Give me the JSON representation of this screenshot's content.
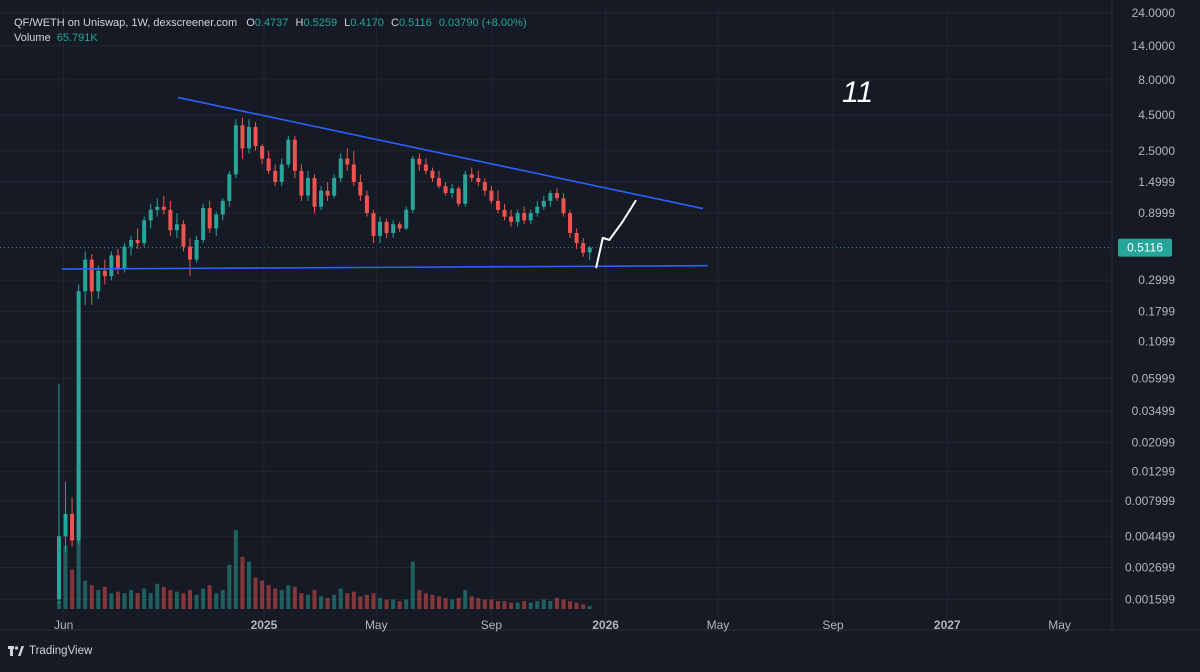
{
  "header": {
    "pair": "QF/WETH on Uniswap, 1W, dexscreener.com",
    "o_label": "O",
    "o_value": "0.4737",
    "h_label": "H",
    "h_value": "0.5259",
    "l_label": "L",
    "l_value": "0.4170",
    "c_label": "C",
    "c_value": "0.5116",
    "change": "0.03790 (+8.00%)",
    "volume_label": "Volume",
    "volume_value": "65.791K"
  },
  "brand": {
    "name": "TradingView"
  },
  "colors": {
    "up": "#26a69a",
    "down": "#ef5350",
    "trendline": "#2962ff",
    "background": "#161a25",
    "grid": "#232632"
  },
  "annotation": {
    "text": "11"
  },
  "chart_data": {
    "type": "candlestick",
    "y_scale": "log",
    "ylim": [
      0.0013,
      26
    ],
    "last_price": 0.5116,
    "y_ticks": [
      24,
      14,
      8,
      4.5,
      2.5,
      1.4999,
      0.8999,
      0.5116,
      0.2999,
      0.1799,
      0.1099,
      0.05999,
      0.03499,
      0.02099,
      0.01299,
      0.007999,
      0.004499,
      0.002699,
      0.001599
    ],
    "y_tick_labels": [
      "24.0000",
      "14.0000",
      "8.0000",
      "4.5000",
      "2.5000",
      "1.4999",
      "0.8999",
      "0.5116",
      "0.2999",
      "0.1799",
      "0.1099",
      "0.05999",
      "0.03499",
      "0.02099",
      "0.01299",
      "0.007999",
      "0.004499",
      "0.002699",
      "0.001599"
    ],
    "x_ticks": [
      {
        "label": "Jun",
        "x": "2024-06-01"
      },
      {
        "label": "2025",
        "x": "2025-01-01"
      },
      {
        "label": "May",
        "x": "2025-05-01"
      },
      {
        "label": "Sep",
        "x": "2025-09-01"
      },
      {
        "label": "2026",
        "x": "2026-01-01"
      },
      {
        "label": "May",
        "x": "2026-05-01"
      },
      {
        "label": "Sep",
        "x": "2026-09-01"
      },
      {
        "label": "2027",
        "x": "2027-01-01"
      },
      {
        "label": "May",
        "x": "2027-05-01"
      }
    ],
    "xlim": [
      "2024-03-25",
      "2027-06-26"
    ],
    "candles": [
      {
        "x": "2024-05-27",
        "o": 0.0016,
        "h": 0.055,
        "l": 0.0015,
        "c": 0.0045
      },
      {
        "x": "2024-06-03",
        "o": 0.0045,
        "h": 0.011,
        "l": 0.0035,
        "c": 0.0065
      },
      {
        "x": "2024-06-10",
        "o": 0.0065,
        "h": 0.0085,
        "l": 0.0038,
        "c": 0.0042
      },
      {
        "x": "2024-06-17",
        "o": 0.0042,
        "h": 0.28,
        "l": 0.004,
        "c": 0.25
      },
      {
        "x": "2024-06-24",
        "o": 0.25,
        "h": 0.48,
        "l": 0.2,
        "c": 0.42
      },
      {
        "x": "2024-07-01",
        "o": 0.42,
        "h": 0.46,
        "l": 0.2,
        "c": 0.25
      },
      {
        "x": "2024-07-08",
        "o": 0.25,
        "h": 0.38,
        "l": 0.22,
        "c": 0.35
      },
      {
        "x": "2024-07-15",
        "o": 0.35,
        "h": 0.42,
        "l": 0.28,
        "c": 0.32
      },
      {
        "x": "2024-07-22",
        "o": 0.32,
        "h": 0.48,
        "l": 0.3,
        "c": 0.45
      },
      {
        "x": "2024-07-29",
        "o": 0.45,
        "h": 0.5,
        "l": 0.33,
        "c": 0.36
      },
      {
        "x": "2024-08-05",
        "o": 0.36,
        "h": 0.55,
        "l": 0.34,
        "c": 0.52
      },
      {
        "x": "2024-08-12",
        "o": 0.52,
        "h": 0.62,
        "l": 0.45,
        "c": 0.58
      },
      {
        "x": "2024-08-19",
        "o": 0.58,
        "h": 0.7,
        "l": 0.5,
        "c": 0.55
      },
      {
        "x": "2024-08-26",
        "o": 0.55,
        "h": 0.85,
        "l": 0.52,
        "c": 0.8
      },
      {
        "x": "2024-09-02",
        "o": 0.8,
        "h": 1.05,
        "l": 0.7,
        "c": 0.95
      },
      {
        "x": "2024-09-09",
        "o": 0.95,
        "h": 1.15,
        "l": 0.85,
        "c": 1.0
      },
      {
        "x": "2024-09-16",
        "o": 1.0,
        "h": 1.2,
        "l": 0.88,
        "c": 0.95
      },
      {
        "x": "2024-09-23",
        "o": 0.95,
        "h": 1.1,
        "l": 0.62,
        "c": 0.68
      },
      {
        "x": "2024-09-30",
        "o": 0.68,
        "h": 0.9,
        "l": 0.6,
        "c": 0.75
      },
      {
        "x": "2024-10-07",
        "o": 0.75,
        "h": 0.8,
        "l": 0.48,
        "c": 0.52
      },
      {
        "x": "2024-10-14",
        "o": 0.52,
        "h": 0.6,
        "l": 0.32,
        "c": 0.42
      },
      {
        "x": "2024-10-21",
        "o": 0.42,
        "h": 0.62,
        "l": 0.4,
        "c": 0.58
      },
      {
        "x": "2024-10-28",
        "o": 0.58,
        "h": 1.05,
        "l": 0.55,
        "c": 0.98
      },
      {
        "x": "2024-11-04",
        "o": 0.98,
        "h": 1.1,
        "l": 0.65,
        "c": 0.7
      },
      {
        "x": "2024-11-11",
        "o": 0.7,
        "h": 0.92,
        "l": 0.62,
        "c": 0.88
      },
      {
        "x": "2024-11-18",
        "o": 0.88,
        "h": 1.15,
        "l": 0.8,
        "c": 1.1
      },
      {
        "x": "2024-11-25",
        "o": 1.1,
        "h": 1.8,
        "l": 1.0,
        "c": 1.7
      },
      {
        "x": "2024-12-02",
        "o": 1.7,
        "h": 4.2,
        "l": 1.6,
        "c": 3.8
      },
      {
        "x": "2024-12-09",
        "o": 3.8,
        "h": 4.3,
        "l": 2.2,
        "c": 2.6
      },
      {
        "x": "2024-12-16",
        "o": 2.6,
        "h": 4.2,
        "l": 2.4,
        "c": 3.7
      },
      {
        "x": "2024-12-23",
        "o": 3.7,
        "h": 4.0,
        "l": 2.5,
        "c": 2.7
      },
      {
        "x": "2024-12-30",
        "o": 2.7,
        "h": 2.8,
        "l": 2.0,
        "c": 2.2
      },
      {
        "x": "2025-01-06",
        "o": 2.2,
        "h": 2.5,
        "l": 1.7,
        "c": 1.8
      },
      {
        "x": "2025-01-13",
        "o": 1.8,
        "h": 2.0,
        "l": 1.4,
        "c": 1.5
      },
      {
        "x": "2025-01-20",
        "o": 1.5,
        "h": 2.2,
        "l": 1.4,
        "c": 2.0
      },
      {
        "x": "2025-01-27",
        "o": 2.0,
        "h": 3.2,
        "l": 1.9,
        "c": 3.0
      },
      {
        "x": "2025-02-03",
        "o": 3.0,
        "h": 3.2,
        "l": 1.6,
        "c": 1.8
      },
      {
        "x": "2025-02-10",
        "o": 1.8,
        "h": 2.0,
        "l": 1.1,
        "c": 1.2
      },
      {
        "x": "2025-02-17",
        "o": 1.2,
        "h": 1.8,
        "l": 1.1,
        "c": 1.6
      },
      {
        "x": "2025-02-24",
        "o": 1.6,
        "h": 1.7,
        "l": 0.9,
        "c": 1.0
      },
      {
        "x": "2025-03-03",
        "o": 1.0,
        "h": 1.4,
        "l": 0.95,
        "c": 1.3
      },
      {
        "x": "2025-03-10",
        "o": 1.3,
        "h": 1.5,
        "l": 1.1,
        "c": 1.2
      },
      {
        "x": "2025-03-17",
        "o": 1.2,
        "h": 1.7,
        "l": 1.15,
        "c": 1.6
      },
      {
        "x": "2025-03-24",
        "o": 1.6,
        "h": 2.4,
        "l": 1.5,
        "c": 2.2
      },
      {
        "x": "2025-03-31",
        "o": 2.2,
        "h": 2.6,
        "l": 1.8,
        "c": 2.0
      },
      {
        "x": "2025-04-07",
        "o": 2.0,
        "h": 2.5,
        "l": 1.4,
        "c": 1.5
      },
      {
        "x": "2025-04-14",
        "o": 1.5,
        "h": 1.7,
        "l": 1.1,
        "c": 1.2
      },
      {
        "x": "2025-04-21",
        "o": 1.2,
        "h": 1.3,
        "l": 0.85,
        "c": 0.9
      },
      {
        "x": "2025-04-28",
        "o": 0.9,
        "h": 0.95,
        "l": 0.55,
        "c": 0.62
      },
      {
        "x": "2025-05-05",
        "o": 0.62,
        "h": 0.85,
        "l": 0.55,
        "c": 0.78
      },
      {
        "x": "2025-05-12",
        "o": 0.78,
        "h": 0.82,
        "l": 0.6,
        "c": 0.65
      },
      {
        "x": "2025-05-19",
        "o": 0.65,
        "h": 0.8,
        "l": 0.6,
        "c": 0.75
      },
      {
        "x": "2025-05-26",
        "o": 0.75,
        "h": 0.78,
        "l": 0.66,
        "c": 0.7
      },
      {
        "x": "2025-06-02",
        "o": 0.7,
        "h": 1.0,
        "l": 0.68,
        "c": 0.95
      },
      {
        "x": "2025-06-09",
        "o": 0.95,
        "h": 2.3,
        "l": 0.9,
        "c": 2.2
      },
      {
        "x": "2025-06-16",
        "o": 2.2,
        "h": 2.4,
        "l": 1.8,
        "c": 2.0
      },
      {
        "x": "2025-06-23",
        "o": 2.0,
        "h": 2.2,
        "l": 1.7,
        "c": 1.8
      },
      {
        "x": "2025-06-30",
        "o": 1.8,
        "h": 1.9,
        "l": 1.5,
        "c": 1.6
      },
      {
        "x": "2025-07-07",
        "o": 1.6,
        "h": 1.8,
        "l": 1.35,
        "c": 1.4
      },
      {
        "x": "2025-07-14",
        "o": 1.4,
        "h": 1.5,
        "l": 1.2,
        "c": 1.25
      },
      {
        "x": "2025-07-21",
        "o": 1.25,
        "h": 1.45,
        "l": 1.15,
        "c": 1.35
      },
      {
        "x": "2025-07-28",
        "o": 1.35,
        "h": 1.4,
        "l": 1.0,
        "c": 1.05
      },
      {
        "x": "2025-08-04",
        "o": 1.05,
        "h": 1.8,
        "l": 1.0,
        "c": 1.7
      },
      {
        "x": "2025-08-11",
        "o": 1.7,
        "h": 1.9,
        "l": 1.5,
        "c": 1.6
      },
      {
        "x": "2025-08-18",
        "o": 1.6,
        "h": 1.8,
        "l": 1.4,
        "c": 1.5
      },
      {
        "x": "2025-08-25",
        "o": 1.5,
        "h": 1.6,
        "l": 1.2,
        "c": 1.3
      },
      {
        "x": "2025-09-01",
        "o": 1.3,
        "h": 1.4,
        "l": 1.05,
        "c": 1.1
      },
      {
        "x": "2025-09-08",
        "o": 1.1,
        "h": 1.3,
        "l": 0.9,
        "c": 0.95
      },
      {
        "x": "2025-09-15",
        "o": 0.95,
        "h": 1.05,
        "l": 0.8,
        "c": 0.85
      },
      {
        "x": "2025-09-22",
        "o": 0.85,
        "h": 0.95,
        "l": 0.72,
        "c": 0.78
      },
      {
        "x": "2025-09-29",
        "o": 0.78,
        "h": 0.95,
        "l": 0.72,
        "c": 0.9
      },
      {
        "x": "2025-10-06",
        "o": 0.9,
        "h": 1.0,
        "l": 0.75,
        "c": 0.8
      },
      {
        "x": "2025-10-13",
        "o": 0.8,
        "h": 0.95,
        "l": 0.75,
        "c": 0.9
      },
      {
        "x": "2025-10-20",
        "o": 0.9,
        "h": 1.1,
        "l": 0.85,
        "c": 1.0
      },
      {
        "x": "2025-10-27",
        "o": 1.0,
        "h": 1.2,
        "l": 0.95,
        "c": 1.1
      },
      {
        "x": "2025-11-03",
        "o": 1.1,
        "h": 1.3,
        "l": 1.0,
        "c": 1.25
      },
      {
        "x": "2025-11-10",
        "o": 1.25,
        "h": 1.35,
        "l": 1.1,
        "c": 1.15
      },
      {
        "x": "2025-11-17",
        "o": 1.15,
        "h": 1.25,
        "l": 0.85,
        "c": 0.9
      },
      {
        "x": "2025-11-24",
        "o": 0.9,
        "h": 0.95,
        "l": 0.6,
        "c": 0.65
      },
      {
        "x": "2025-12-01",
        "o": 0.65,
        "h": 0.7,
        "l": 0.5,
        "c": 0.55
      },
      {
        "x": "2025-12-08",
        "o": 0.55,
        "h": 0.6,
        "l": 0.44,
        "c": 0.47
      },
      {
        "x": "2025-12-15",
        "o": 0.4737,
        "h": 0.5259,
        "l": 0.417,
        "c": 0.5116
      }
    ],
    "volume": [
      0.05,
      0.4,
      0.25,
      0.95,
      0.18,
      0.15,
      0.12,
      0.14,
      0.1,
      0.11,
      0.1,
      0.12,
      0.1,
      0.13,
      0.1,
      0.16,
      0.14,
      0.12,
      0.11,
      0.1,
      0.12,
      0.09,
      0.13,
      0.15,
      0.1,
      0.12,
      0.28,
      0.5,
      0.33,
      0.3,
      0.2,
      0.18,
      0.15,
      0.13,
      0.12,
      0.15,
      0.14,
      0.1,
      0.09,
      0.12,
      0.08,
      0.07,
      0.09,
      0.13,
      0.1,
      0.11,
      0.08,
      0.09,
      0.1,
      0.07,
      0.06,
      0.06,
      0.05,
      0.06,
      0.3,
      0.12,
      0.1,
      0.09,
      0.08,
      0.07,
      0.06,
      0.07,
      0.12,
      0.08,
      0.07,
      0.06,
      0.06,
      0.05,
      0.05,
      0.04,
      0.04,
      0.05,
      0.04,
      0.05,
      0.06,
      0.05,
      0.07,
      0.06,
      0.05,
      0.04,
      0.03,
      0.02
    ],
    "volume_max_value_hint": "relative",
    "trendlines": [
      {
        "name": "descending-resistance",
        "from": {
          "x": "2024-10-01",
          "y": 6.0
        },
        "to": {
          "x": "2026-04-15",
          "y": 0.97
        }
      },
      {
        "name": "support",
        "from": {
          "x": "2024-05-30",
          "y": 0.36
        },
        "to": {
          "x": "2026-04-20",
          "y": 0.38
        }
      }
    ],
    "projection": [
      {
        "x": "2025-12-22",
        "y": 0.37
      },
      {
        "x": "2025-12-29",
        "y": 0.6
      },
      {
        "x": "2026-01-05",
        "y": 0.58
      },
      {
        "x": "2026-01-19",
        "y": 0.78
      },
      {
        "x": "2026-02-02",
        "y": 1.1
      }
    ],
    "grid": true
  }
}
